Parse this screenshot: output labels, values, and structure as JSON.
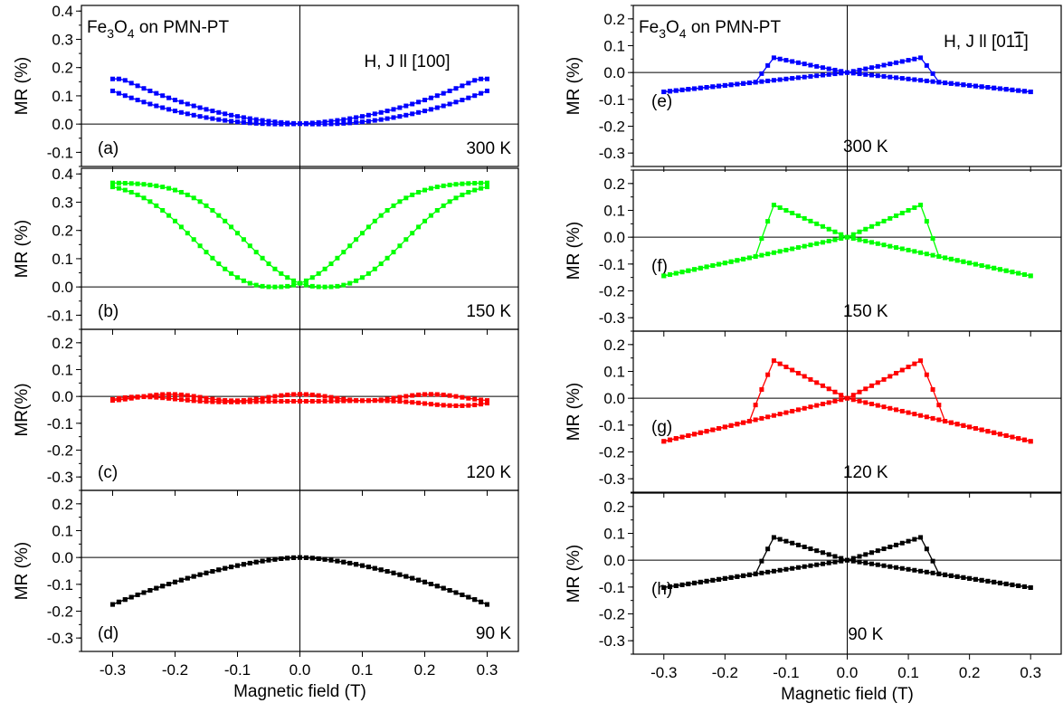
{
  "chart_data": [
    {
      "type": "line",
      "group": "left",
      "header": {
        "sample_prefix": "Fe",
        "sample_sub1": "3",
        "sample_mid": "O",
        "sample_sub2": "4",
        "sample_suffix": " on PMN-PT",
        "field_label": "H, J ll [100]"
      },
      "xlabel": "Magnetic field (T)",
      "xlim": [
        -0.35,
        0.35
      ],
      "x_ticks": [
        "-0.3",
        "-0.2",
        "-0.1",
        "0.0",
        "0.1",
        "0.2",
        "0.3"
      ],
      "panels": [
        {
          "label": "(a)",
          "temperature": "300 K",
          "ylabel": "MR (%)",
          "ylim": [
            -0.15,
            0.42
          ],
          "y_ticks": [
            "0.4",
            "0.3",
            "0.2",
            "0.1",
            "0.0",
            "-0.1"
          ],
          "color": "#0000ff",
          "amp": 0.145,
          "model": "even",
          "shift": 0.03
        },
        {
          "label": "(b)",
          "temperature": "150 K",
          "ylabel": "MR (%)",
          "ylim": [
            -0.15,
            0.42
          ],
          "y_ticks": [
            "0.4",
            "0.3",
            "0.2",
            "0.1",
            "0.0",
            "-0.1"
          ],
          "color": "#00ff00",
          "amp": 0.365,
          "model": "even",
          "shift": 0.04
        },
        {
          "label": "(c)",
          "temperature": "120 K",
          "ylabel": "MR(%)",
          "ylim": [
            -0.35,
            0.25
          ],
          "y_ticks": [
            "0.2",
            "0.1",
            "0.0",
            "-0.1",
            "-0.2",
            "-0.3"
          ],
          "color": "#ff0000",
          "amp": 0.0,
          "model": "flat",
          "shift": 0.0
        },
        {
          "label": "(d)",
          "temperature": "90 K",
          "ylabel": "MR (%)",
          "ylim": [
            -0.35,
            0.25
          ],
          "y_ticks": [
            "0.2",
            "0.1",
            "0.0",
            "-0.1",
            "-0.2",
            "-0.3"
          ],
          "color": "#000000",
          "amp": -0.175,
          "model": "even",
          "shift": 0.01
        }
      ]
    },
    {
      "type": "line",
      "group": "right",
      "header": {
        "sample_prefix": "Fe",
        "sample_sub1": "3",
        "sample_mid": "O",
        "sample_sub2": "4",
        "sample_suffix": " on PMN-PT",
        "field_label": "H, J ll [01",
        "field_label_bar": "1",
        "field_label_end": "]"
      },
      "xlabel": "Magnetic field (T)",
      "xlim": [
        -0.35,
        0.35
      ],
      "x_ticks": [
        "-0.3",
        "-0.2",
        "-0.1",
        "0.0",
        "0.1",
        "0.2",
        "0.3"
      ],
      "panels": [
        {
          "label": "(e)",
          "temperature": "300 K",
          "ylabel": "MR (%)",
          "ylim": [
            -0.35,
            0.25
          ],
          "y_ticks": [
            "0.2",
            "0.1",
            "0.0",
            "-0.1",
            "-0.2",
            "-0.3"
          ],
          "color": "#0000ff",
          "slope": 0.48,
          "peak": 0.055,
          "switch": 0.12,
          "onset": 0.15
        },
        {
          "label": "(f)",
          "temperature": "150 K",
          "ylabel": "MR (%)",
          "ylim": [
            -0.35,
            0.25
          ],
          "y_ticks": [
            "0.2",
            "0.1",
            "0.0",
            "-0.1",
            "-0.2",
            "-0.3"
          ],
          "color": "#00ff00",
          "slope": 0.96,
          "peak": 0.12,
          "switch": 0.12,
          "onset": 0.15
        },
        {
          "label": "(g)",
          "temperature": "120 K",
          "ylabel": "MR (%)",
          "ylim": [
            -0.35,
            0.25
          ],
          "y_ticks": [
            "0.2",
            "0.1",
            "0.0",
            "-0.1",
            "-0.2",
            "-0.3"
          ],
          "color": "#ff0000",
          "slope": 1.07,
          "peak": 0.14,
          "switch": 0.12,
          "onset": 0.16
        },
        {
          "label": "(h)",
          "temperature": "90 K",
          "ylabel": "MR (%)",
          "ylim": [
            -0.35,
            0.25
          ],
          "y_ticks": [
            "0.2",
            "0.1",
            "0.0",
            "-0.1",
            "-0.2",
            "-0.3"
          ],
          "color": "#000000",
          "slope": 0.68,
          "peak": 0.085,
          "switch": 0.12,
          "onset": 0.15
        }
      ]
    }
  ]
}
